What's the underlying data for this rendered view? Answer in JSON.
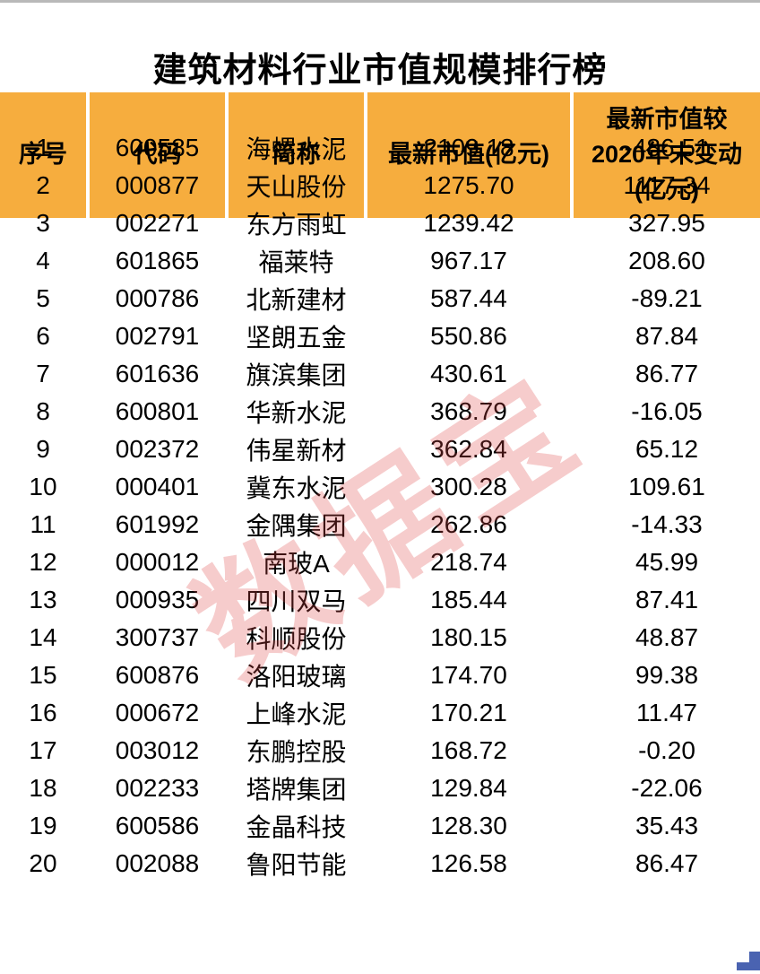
{
  "page": {
    "title": "建筑材料行业市值规模排行榜"
  },
  "watermark": {
    "text": "数据宝"
  },
  "colors": {
    "header_bg": "#F6AD3E",
    "row_alt_bg": "#F8D68C",
    "row_bg": "#FFFFFF",
    "watermark_red": "rgba(224,70,70,0.5)",
    "corner_blue": "#4A63B1",
    "top_line_gray": "#B9B9B9",
    "text_black": "#000000"
  },
  "chart_data": {
    "type": "table",
    "title": "建筑材料行业市值规模排行榜",
    "columns": [
      {
        "key": "rank",
        "lines": [
          "序号"
        ]
      },
      {
        "key": "code",
        "lines": [
          "代码"
        ]
      },
      {
        "key": "name",
        "lines": [
          "简称"
        ]
      },
      {
        "key": "market-cap",
        "lines": [
          "最新市值(亿元)"
        ]
      },
      {
        "key": "change",
        "lines": [
          "最新市值较",
          "2020年末变动",
          "(亿元)"
        ]
      }
    ],
    "rows": [
      [
        "1",
        "600585",
        "海螺水泥",
        "2109.18",
        "-486.51"
      ],
      [
        "2",
        "000877",
        "天山股份",
        "1275.70",
        "1117.34"
      ],
      [
        "3",
        "002271",
        "东方雨虹",
        "1239.42",
        "327.95"
      ],
      [
        "4",
        "601865",
        "福莱特",
        "967.17",
        "208.60"
      ],
      [
        "5",
        "000786",
        "北新建材",
        "587.44",
        "-89.21"
      ],
      [
        "6",
        "002791",
        "坚朗五金",
        "550.86",
        "87.84"
      ],
      [
        "7",
        "601636",
        "旗滨集团",
        "430.61",
        "86.77"
      ],
      [
        "8",
        "600801",
        "华新水泥",
        "368.79",
        "-16.05"
      ],
      [
        "9",
        "002372",
        "伟星新材",
        "362.84",
        "65.12"
      ],
      [
        "10",
        "000401",
        "冀东水泥",
        "300.28",
        "109.61"
      ],
      [
        "11",
        "601992",
        "金隅集团",
        "262.86",
        "-14.33"
      ],
      [
        "12",
        "000012",
        "南玻A",
        "218.74",
        "45.99"
      ],
      [
        "13",
        "000935",
        "四川双马",
        "185.44",
        "87.41"
      ],
      [
        "14",
        "300737",
        "科顺股份",
        "180.15",
        "48.87"
      ],
      [
        "15",
        "600876",
        "洛阳玻璃",
        "174.70",
        "99.38"
      ],
      [
        "16",
        "000672",
        "上峰水泥",
        "170.21",
        "11.47"
      ],
      [
        "17",
        "003012",
        "东鹏控股",
        "168.72",
        "-0.20"
      ],
      [
        "18",
        "002233",
        "塔牌集团",
        "129.84",
        "-22.06"
      ],
      [
        "19",
        "600586",
        "金晶科技",
        "128.30",
        "35.43"
      ],
      [
        "20",
        "002088",
        "鲁阳节能",
        "126.58",
        "86.47"
      ]
    ]
  }
}
